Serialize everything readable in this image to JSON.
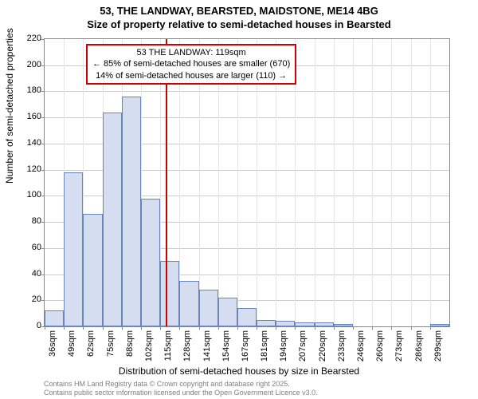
{
  "chart": {
    "type": "histogram",
    "title": "53, THE LANDWAY, BEARSTED, MAIDSTONE, ME14 4BG",
    "subtitle": "Size of property relative to semi-detached houses in Bearsted",
    "ylabel": "Number of semi-detached properties",
    "xlabel": "Distribution of semi-detached houses by size in Bearsted",
    "background_color": "#ffffff",
    "bar_fill": "#d4def0",
    "bar_border": "#6b84b8",
    "marker_color": "#cc0000",
    "grid_color": "#cccccc",
    "axis_color": "#888888",
    "ylim": [
      0,
      220
    ],
    "ytick_step": 20,
    "yticks": [
      0,
      20,
      40,
      60,
      80,
      100,
      120,
      140,
      160,
      180,
      200,
      220
    ],
    "xticks": [
      "36sqm",
      "49sqm",
      "62sqm",
      "75sqm",
      "88sqm",
      "102sqm",
      "115sqm",
      "128sqm",
      "141sqm",
      "154sqm",
      "167sqm",
      "181sqm",
      "194sqm",
      "207sqm",
      "220sqm",
      "233sqm",
      "246sqm",
      "260sqm",
      "273sqm",
      "286sqm",
      "299sqm"
    ],
    "values": [
      12,
      118,
      86,
      164,
      176,
      98,
      50,
      35,
      28,
      22,
      14,
      5,
      4,
      3,
      3,
      2,
      0,
      0,
      0,
      0,
      2
    ],
    "marker_x_index": 6.3,
    "annotation": {
      "line1": "53 THE LANDWAY: 119sqm",
      "line2": "← 85% of semi-detached houses are smaller (670)",
      "line3": "14% of semi-detached houses are larger (110) →"
    },
    "attribution_line1": "Contains HM Land Registry data © Crown copyright and database right 2025.",
    "attribution_line2": "Contains public sector information licensed under the Open Government Licence v3.0.",
    "title_fontsize": 13,
    "label_fontsize": 12,
    "tick_fontsize": 11,
    "annotation_fontsize": 11,
    "attribution_fontsize": 9,
    "attribution_color": "#808080"
  }
}
